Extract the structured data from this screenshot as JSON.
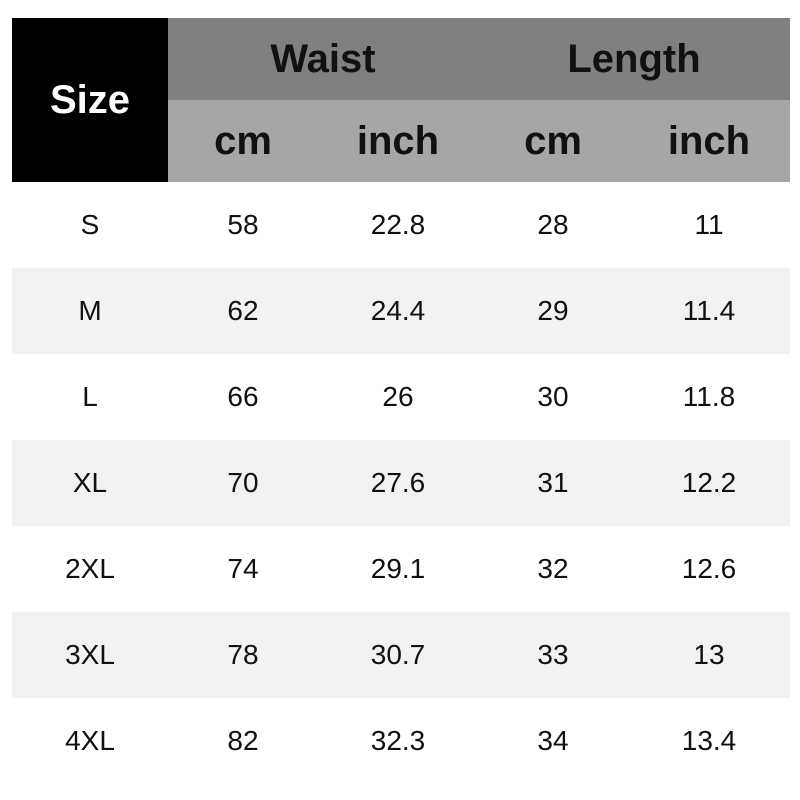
{
  "table": {
    "header": {
      "size": "Size",
      "groups": [
        "Waist",
        "Length"
      ],
      "units": [
        "cm",
        "inch",
        "cm",
        "inch"
      ]
    },
    "rows": [
      [
        "S",
        58,
        22.8,
        28,
        11
      ],
      [
        "M",
        62,
        24.4,
        29,
        11.4
      ],
      [
        "L",
        66,
        26,
        30,
        11.8
      ],
      [
        "XL",
        70,
        27.6,
        31,
        12.2
      ],
      [
        "2XL",
        74,
        29.1,
        32,
        12.6
      ],
      [
        "3XL",
        78,
        30.7,
        33,
        13
      ],
      [
        "4XL",
        82,
        32.3,
        34,
        13.4
      ]
    ]
  }
}
